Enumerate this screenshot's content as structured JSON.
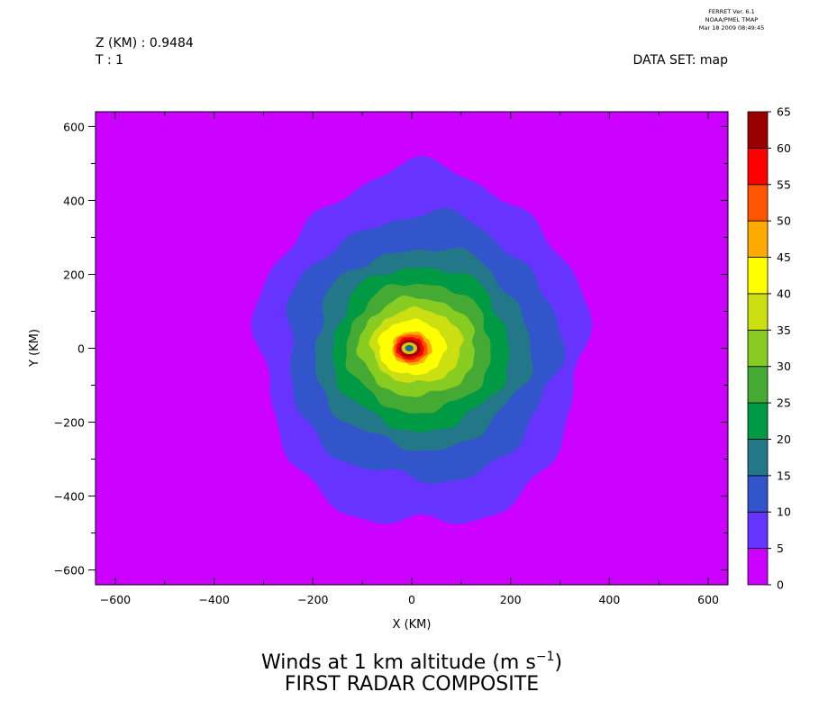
{
  "header": {
    "program": "FERRET Ver. 6.1",
    "org": "NOAA/PMEL TMAP",
    "timestamp": "Mar 18 2009 08:49:45",
    "z_label": "Z (KM) : 0.9484",
    "t_label": "T : 1",
    "dataset_label": "DATA SET: map"
  },
  "chart_data": {
    "type": "heatmap",
    "title_line1_prefix": "Winds at 1 km altitude (m s",
    "title_line1_exponent": "−1",
    "title_line1_suffix": ")",
    "title_line2": "FIRST RADAR COMPOSITE",
    "xlabel": "X (KM)",
    "ylabel": "Y (KM)",
    "xlim": [
      -640,
      640
    ],
    "ylim": [
      -640,
      640
    ],
    "x_ticks": [
      -600,
      -400,
      -200,
      0,
      200,
      400,
      600
    ],
    "x_tick_labels": [
      "−600",
      "−400",
      "−200",
      "0",
      "200",
      "400",
      "600"
    ],
    "y_ticks": [
      600,
      400,
      200,
      0,
      -200,
      -400,
      -600
    ],
    "y_tick_labels": [
      "600",
      "400",
      "200",
      "0",
      "−200",
      "−400",
      "−600"
    ],
    "background_color": "#cc00ff",
    "colorbar": {
      "levels": [
        0,
        5,
        10,
        15,
        20,
        25,
        30,
        35,
        40,
        45,
        50,
        55,
        60,
        65
      ],
      "labels": [
        "0",
        "5",
        "10",
        "15",
        "20",
        "25",
        "30",
        "35",
        "40",
        "45",
        "50",
        "55",
        "60",
        "65"
      ],
      "colors": [
        "#cc00ff",
        "#6633ff",
        "#3355cc",
        "#227788",
        "#009944",
        "#44aa33",
        "#88cc22",
        "#cce011",
        "#ffff00",
        "#ffaa00",
        "#ff5500",
        "#ff0000",
        "#990000"
      ]
    },
    "contours": [
      {
        "min_value": 5,
        "center": [
          20,
          0
        ],
        "radius_x": 330,
        "radius_y": 485
      },
      {
        "min_value": 10,
        "center": [
          20,
          0
        ],
        "radius_x": 275,
        "radius_y": 360
      },
      {
        "min_value": 15,
        "center": [
          20,
          0
        ],
        "radius_x": 218,
        "radius_y": 272
      },
      {
        "min_value": 20,
        "center": [
          18,
          0
        ],
        "radius_x": 178,
        "radius_y": 222
      },
      {
        "min_value": 25,
        "center": [
          15,
          2
        ],
        "radius_x": 146,
        "radius_y": 175
      },
      {
        "min_value": 30,
        "center": [
          12,
          4
        ],
        "radius_x": 118,
        "radius_y": 133
      },
      {
        "min_value": 35,
        "center": [
          10,
          6
        ],
        "radius_x": 92,
        "radius_y": 100
      },
      {
        "min_value": 40,
        "center": [
          0,
          2
        ],
        "radius_x": 68,
        "radius_y": 74
      },
      {
        "min_value": 45,
        "center": [
          0,
          0
        ],
        "radius_x": 40,
        "radius_y": 45
      },
      {
        "min_value": 50,
        "center": [
          -2,
          0
        ],
        "radius_x": 34,
        "radius_y": 38
      },
      {
        "min_value": 55,
        "center": [
          -3,
          0
        ],
        "radius_x": 28,
        "radius_y": 31
      },
      {
        "min_value": 60,
        "center": [
          -4,
          0
        ],
        "radius_x": 22,
        "radius_y": 24
      }
    ],
    "eye": {
      "center": [
        -5,
        0
      ],
      "rings": [
        {
          "value": 45,
          "radius": 16
        },
        {
          "value": 35,
          "radius": 12
        },
        {
          "value": 20,
          "radius": 9
        },
        {
          "value": 10,
          "radius": 6
        }
      ]
    }
  }
}
